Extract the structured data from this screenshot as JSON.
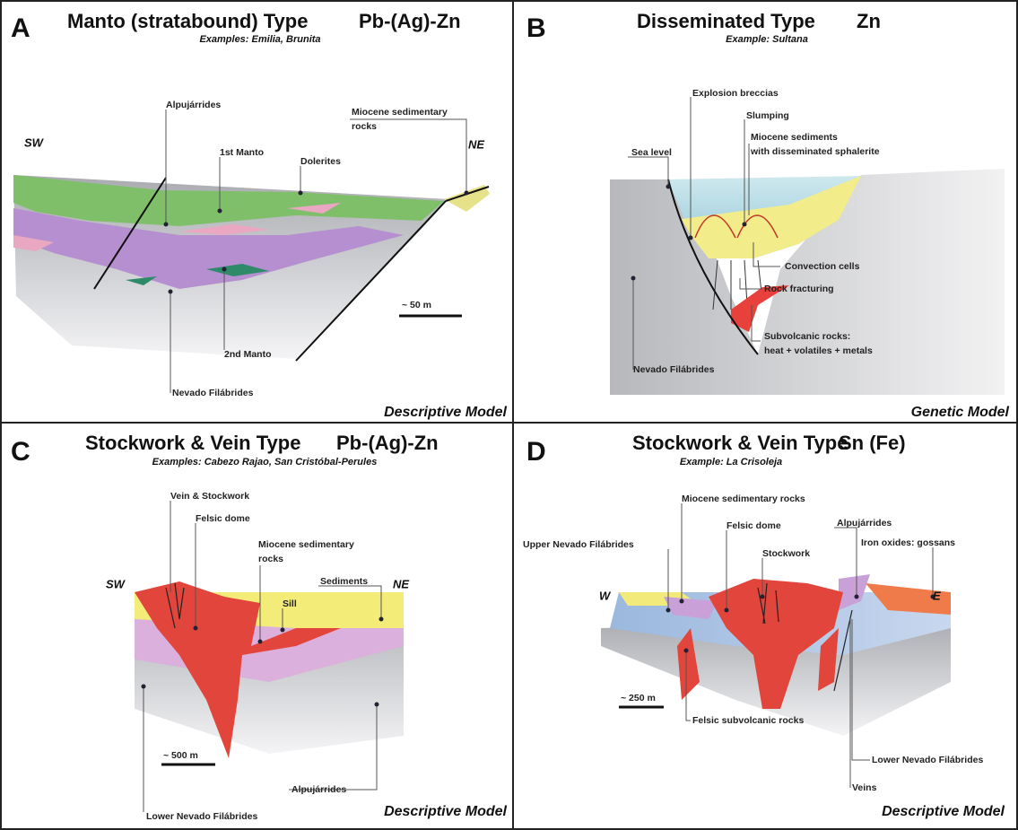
{
  "panels": [
    {
      "letter": "A",
      "title": "Manto (stratabound) Type",
      "ore": "Pb-(Ag)-Zn",
      "subtitle": "Examples: Emilia, Brunita",
      "labels": [
        "Alpujárrides",
        "1st Manto",
        "Dolerites",
        [
          "Miocene sedimentary",
          "rocks"
        ],
        "SW",
        "NE",
        "~ 50 m",
        "2nd Manto",
        "Nevado Filábrides"
      ],
      "model": "Descriptive Model"
    },
    {
      "letter": "B",
      "title": "Disseminated Type",
      "ore": "Zn",
      "subtitle": "Example: Sultana",
      "labels": [
        "Explosion breccias",
        "Slumping",
        [
          "Miocene sediments",
          "with disseminated sphalerite"
        ],
        "Sea level",
        "Convection cells",
        "Rock fracturing",
        [
          "Subvolcanic rocks:",
          "heat + volatiles + metals"
        ],
        "Nevado Filábrides"
      ],
      "model": "Genetic Model"
    },
    {
      "letter": "C",
      "title": "Stockwork & Vein Type",
      "ore": "Pb-(Ag)-Zn",
      "subtitle": "Examples: Cabezo Rajao, San Cristóbal-Perules",
      "labels": [
        "Vein & Stockwork",
        "Felsic dome",
        [
          "Miocene sedimentary",
          "rocks"
        ],
        "Sediments",
        "NE",
        "SW",
        "Sill",
        "~ 500 m",
        "Alpujárrides",
        "Lower Nevado Filábrides"
      ],
      "model": "Descriptive Model"
    },
    {
      "letter": "D",
      "title": "Stockwork & Vein Type",
      "ore": "Sn (Fe)",
      "subtitle": "Example: La Crisoleja",
      "labels": [
        "Miocene sedimentary rocks",
        "Felsic dome",
        "Upper Nevado Filábrides",
        "Stockwork",
        "Alpujárrides",
        "Iron oxides: gossans",
        "W",
        "E",
        "~ 250 m",
        "Felsic subvolcanic rocks",
        "Lower Nevado Filábrides",
        "Veins"
      ],
      "model": "Descriptive Model"
    }
  ]
}
